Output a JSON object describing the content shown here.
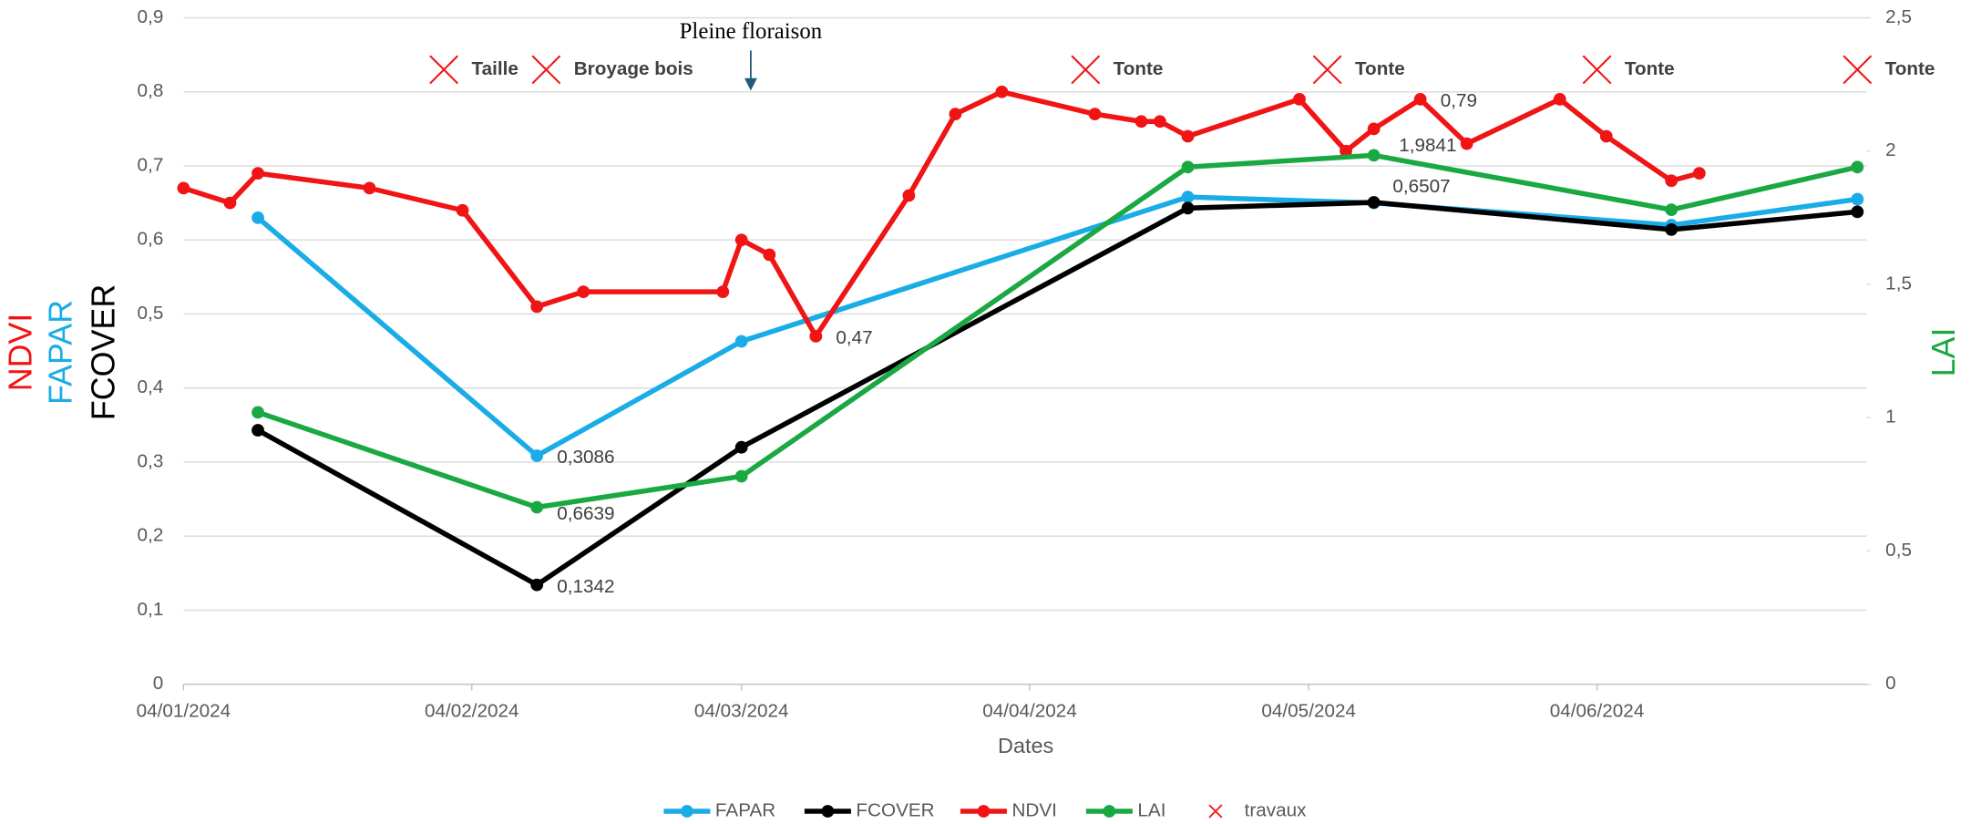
{
  "chart_data": {
    "type": "line",
    "x_label": "Dates",
    "xlim": [
      "04/01/2024",
      "03/07/2024"
    ],
    "xticks": [
      "04/01/2024",
      "04/02/2024",
      "04/03/2024",
      "04/04/2024",
      "04/05/2024",
      "04/06/2024"
    ],
    "ylim": [
      0,
      0.9
    ],
    "yticks": [
      0,
      {
        "value": 0.1,
        "label": "0,1"
      },
      {
        "value": 0.2,
        "label": "0,2"
      },
      {
        "value": 0.3,
        "label": "0,3"
      },
      {
        "value": 0.4,
        "label": "0,4"
      },
      {
        "value": 0.5,
        "label": "0,5"
      },
      {
        "value": 0.6,
        "label": "0,6"
      },
      {
        "value": 0.7,
        "label": "0,7"
      },
      {
        "value": 0.8,
        "label": "0,8"
      },
      {
        "value": 0.9,
        "label": "0,9"
      }
    ],
    "y2lim": [
      0,
      2.5
    ],
    "y2ticks": [
      0,
      {
        "value": 0.5,
        "label": "0,5"
      },
      1,
      {
        "value": 1.5,
        "label": "1,5"
      },
      2,
      {
        "value": 2.5,
        "label": "2,5"
      }
    ],
    "grid": true,
    "legend": "bottom",
    "annotation": {
      "text": "Pleine floraison",
      "x": "05/03/2024"
    },
    "series": [
      {
        "name": "FAPAR",
        "color": "#1aace6",
        "axis": "y",
        "x": [
          "12/01/2024",
          "11/02/2024",
          "04/03/2024",
          "21/04/2024",
          "11/05/2024",
          "12/06/2024",
          "02/07/2024"
        ],
        "values": [
          0.63,
          0.3086,
          0.463,
          0.658,
          0.65,
          0.62,
          0.655
        ],
        "value_labels": [
          null,
          "0,3086",
          null,
          null,
          null,
          null,
          null
        ]
      },
      {
        "name": "FCOVER",
        "color": "#000000",
        "axis": "y",
        "x": [
          "12/01/2024",
          "11/02/2024",
          "04/03/2024",
          "21/04/2024",
          "11/05/2024",
          "12/06/2024",
          "02/07/2024"
        ],
        "values": [
          0.343,
          0.1342,
          0.32,
          0.643,
          0.6507,
          0.614,
          0.638
        ],
        "value_labels": [
          null,
          "0,1342",
          null,
          null,
          "0,6507",
          null,
          null
        ]
      },
      {
        "name": "NDVI",
        "color": "#f01414",
        "axis": "y",
        "x": [
          "04/01/2024",
          "09/01/2024",
          "12/01/2024",
          "24/01/2024",
          "03/02/2024",
          "11/02/2024",
          "16/02/2024",
          "02/03/2024",
          "04/03/2024",
          "07/03/2024",
          "12/03/2024",
          "22/03/2024",
          "27/03/2024",
          "01/04/2024",
          "11/04/2024",
          "16/04/2024",
          "18/04/2024",
          "21/04/2024",
          "03/05/2024",
          "08/05/2024",
          "11/05/2024",
          "16/05/2024",
          "21/05/2024",
          "31/05/2024",
          "05/06/2024",
          "12/06/2024",
          "15/06/2024"
        ],
        "values": [
          0.67,
          0.65,
          0.69,
          0.67,
          0.64,
          0.51,
          0.53,
          0.53,
          0.6,
          0.58,
          0.47,
          0.66,
          0.77,
          0.8,
          0.77,
          0.76,
          0.76,
          0.74,
          0.79,
          0.72,
          0.75,
          0.79,
          0.73,
          0.79,
          0.74,
          0.68,
          0.69
        ],
        "value_labels": [
          null,
          null,
          null,
          null,
          null,
          null,
          null,
          null,
          null,
          null,
          "0,47",
          null,
          null,
          null,
          null,
          null,
          null,
          null,
          null,
          null,
          null,
          "0,79",
          null,
          null,
          null,
          null,
          null
        ]
      },
      {
        "name": "LAI",
        "color": "#1aa843",
        "axis": "y2",
        "x": [
          "12/01/2024",
          "11/02/2024",
          "04/03/2024",
          "21/04/2024",
          "11/05/2024",
          "12/06/2024",
          "02/07/2024"
        ],
        "values": [
          1.02,
          0.6639,
          0.78,
          1.94,
          1.9841,
          1.78,
          1.94
        ],
        "value_labels": [
          null,
          "0,6639",
          null,
          null,
          "1,9841",
          null,
          null
        ]
      },
      {
        "name": "travaux",
        "color": "#f01414",
        "axis": "y",
        "marker": "x",
        "x": [
          "01/02/2024",
          "12/02/2024",
          "10/04/2024",
          "06/05/2024",
          "04/06/2024",
          "02/07/2024"
        ],
        "values": [
          0.83,
          0.83,
          0.83,
          0.83,
          0.83,
          0.83
        ],
        "labels": [
          "Taille",
          "Broyage bois",
          "Tonte",
          "Tonte",
          "Tonte",
          "Tonte"
        ]
      }
    ]
  }
}
